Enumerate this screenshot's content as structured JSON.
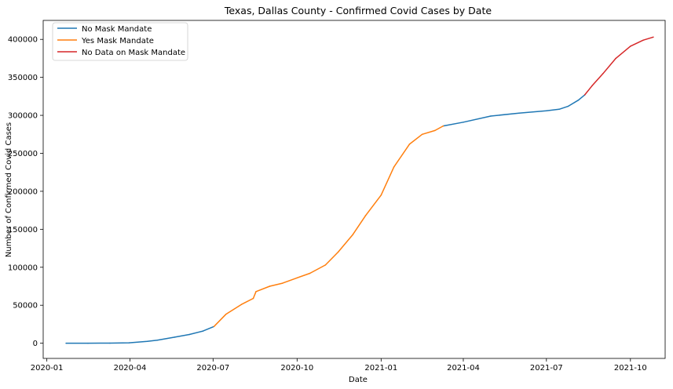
{
  "chart_data": {
    "type": "line",
    "title": "Texas, Dallas County - Confirmed Covid Cases by Date",
    "xlabel": "Date",
    "ylabel": "Number of Confirmed Covid Cases",
    "xlim": [
      "2019-12-28",
      "2021-11-08"
    ],
    "ylim": [
      -20000,
      425000
    ],
    "x_ticks": [
      "2020-01",
      "2020-04",
      "2020-07",
      "2020-10",
      "2021-01",
      "2021-04",
      "2021-07",
      "2021-10"
    ],
    "y_ticks": [
      0,
      50000,
      100000,
      150000,
      200000,
      250000,
      300000,
      350000,
      400000
    ],
    "grid": false,
    "legend_position": "top-left",
    "colors": {
      "no_mask": "#1f77b4",
      "yes_mask": "#ff7f0e",
      "no_data": "#d62728"
    },
    "series": [
      {
        "name": "No Mask Mandate",
        "color": "#1f77b4",
        "segments": [
          {
            "x": [
              "2020-01-22",
              "2020-02-15",
              "2020-03-10",
              "2020-03-31",
              "2020-04-20",
              "2020-05-01",
              "2020-05-20",
              "2020-06-05",
              "2020-06-20",
              "2020-07-02"
            ],
            "y": [
              0,
              0,
              100,
              500,
              2500,
              4000,
              8000,
              11500,
              16000,
              22000
            ]
          },
          {
            "x": [
              "2021-03-10",
              "2021-04-01",
              "2021-05-01",
              "2021-06-01",
              "2021-07-01",
              "2021-07-15",
              "2021-07-25",
              "2021-08-05",
              "2021-08-12"
            ],
            "y": [
              286000,
              291000,
              299000,
              303000,
              306000,
              308000,
              312000,
              320000,
              327000
            ]
          }
        ]
      },
      {
        "name": "Yes Mask Mandate",
        "color": "#ff7f0e",
        "segments": [
          {
            "x": [
              "2020-07-02",
              "2020-07-15",
              "2020-08-01",
              "2020-08-14",
              "2020-08-17",
              "2020-09-01",
              "2020-09-15",
              "2020-10-01",
              "2020-10-15",
              "2020-11-01",
              "2020-11-15",
              "2020-12-01",
              "2020-12-15",
              "2021-01-01",
              "2021-01-15",
              "2021-02-01",
              "2021-02-15",
              "2021-03-01",
              "2021-03-10"
            ],
            "y": [
              22000,
              38000,
              51000,
              59000,
              68000,
              75000,
              79000,
              86000,
              92000,
              103000,
              120000,
              143000,
              168000,
              195000,
              232000,
              262000,
              275000,
              280000,
              286000
            ]
          }
        ]
      },
      {
        "name": "No Data on Mask Mandate",
        "color": "#d62728",
        "segments": [
          {
            "x": [
              "2021-08-12",
              "2021-08-20",
              "2021-09-01",
              "2021-09-15",
              "2021-10-01",
              "2021-10-15",
              "2021-10-26"
            ],
            "y": [
              327000,
              339000,
              355000,
              375000,
              391000,
              399000,
              403000
            ]
          }
        ]
      }
    ]
  }
}
